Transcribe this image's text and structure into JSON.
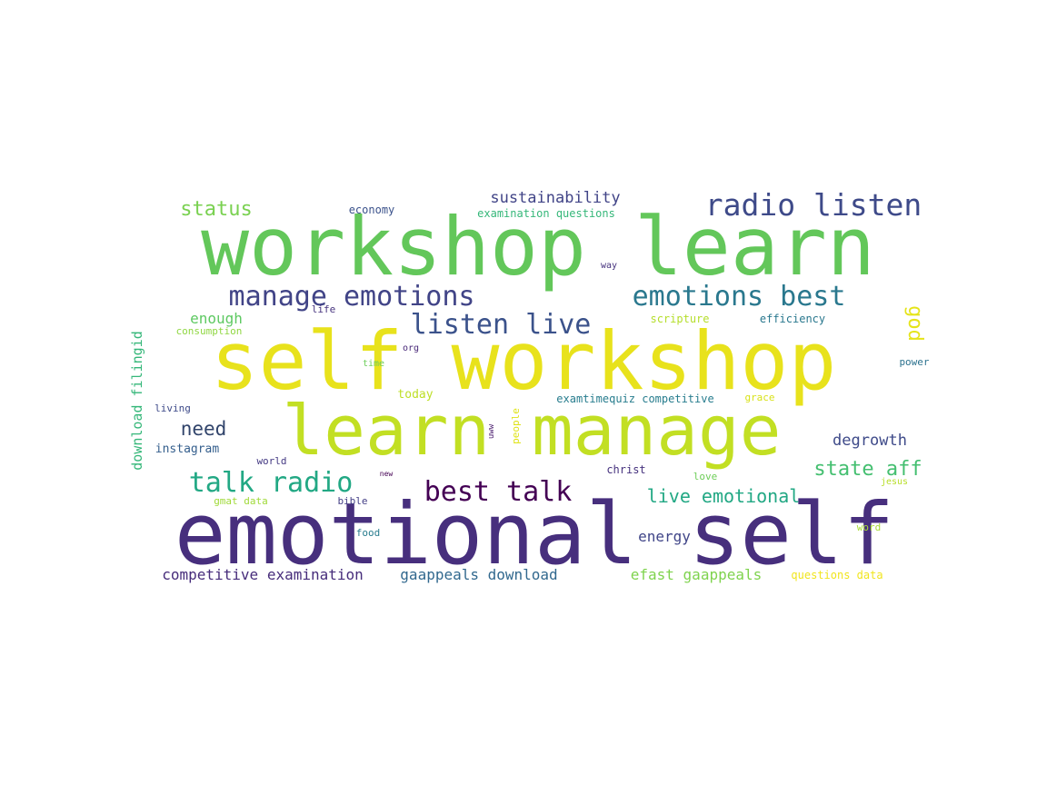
{
  "palette": {
    "purple": "#472f7d",
    "navy": "#3b518b",
    "blue": "#2c728e",
    "teal": "#21918c",
    "green": "#3fbc73",
    "lime": "#7ad151",
    "grass": "#5ec962",
    "chartreuse": "#bddf26",
    "yellow": "#fde725"
  },
  "words": [
    {
      "text": "workshop learn",
      "color": "#63c75a"
    },
    {
      "text": "self workshop",
      "color": "#e8e21c"
    },
    {
      "text": "learn manage",
      "color": "#c2df23"
    },
    {
      "text": "emotional self",
      "color": "#472f7d"
    },
    {
      "text": "radio listen",
      "color": "#3e4a89"
    },
    {
      "text": "manage emotions",
      "color": "#414487"
    },
    {
      "text": "emotions best",
      "color": "#2a788e"
    },
    {
      "text": "listen live",
      "color": "#3b528b"
    },
    {
      "text": "talk radio",
      "color": "#22a884"
    },
    {
      "text": "best talk",
      "color": "#440154"
    },
    {
      "text": "status",
      "color": "#7ad151"
    },
    {
      "text": "sustainability",
      "color": "#414487"
    },
    {
      "text": "economy",
      "color": "#3b528b"
    },
    {
      "text": "examination questions",
      "color": "#35b779"
    },
    {
      "text": "enough",
      "color": "#5ec962"
    },
    {
      "text": "god",
      "color": "#e5e419"
    },
    {
      "text": "need",
      "color": "#31446b"
    },
    {
      "text": "state aff",
      "color": "#44bf70"
    },
    {
      "text": "live emotional",
      "color": "#22a884"
    },
    {
      "text": "degrowth",
      "color": "#3e4a89"
    },
    {
      "text": "download filingid",
      "color": "#35b779"
    },
    {
      "text": "consumption",
      "color": "#90d743"
    },
    {
      "text": "life",
      "color": "#46337e"
    },
    {
      "text": "scripture",
      "color": "#b5de2b"
    },
    {
      "text": "efficiency",
      "color": "#2a788e"
    },
    {
      "text": "way",
      "color": "#46337e"
    },
    {
      "text": "org",
      "color": "#482878"
    },
    {
      "text": "time",
      "color": "#6ccd5a"
    },
    {
      "text": "today",
      "color": "#bddf26"
    },
    {
      "text": "power",
      "color": "#2c728e"
    },
    {
      "text": "examtimequiz competitive",
      "color": "#287d8e"
    },
    {
      "text": "grace",
      "color": "#d8e219"
    },
    {
      "text": "living",
      "color": "#3e4a89"
    },
    {
      "text": "instagram",
      "color": "#355f8d"
    },
    {
      "text": "uww",
      "color": "#481a6c"
    },
    {
      "text": "people",
      "color": "#dfe318"
    },
    {
      "text": "world",
      "color": "#443983"
    },
    {
      "text": "new",
      "color": "#440154"
    },
    {
      "text": "christ",
      "color": "#46327e"
    },
    {
      "text": "love",
      "color": "#6ece58"
    },
    {
      "text": "jesus",
      "color": "#b8de29"
    },
    {
      "text": "gmat data",
      "color": "#a0da39"
    },
    {
      "text": "bible",
      "color": "#433e85"
    },
    {
      "text": "energy",
      "color": "#404588"
    },
    {
      "text": "word",
      "color": "#a8db34"
    },
    {
      "text": "food",
      "color": "#287c8e"
    },
    {
      "text": "competitive examination",
      "color": "#472d7b"
    },
    {
      "text": "gaappeals download",
      "color": "#31688e"
    },
    {
      "text": "efast gaappeals",
      "color": "#7fd34e"
    },
    {
      "text": "questions data",
      "color": "#f1e51d"
    }
  ]
}
